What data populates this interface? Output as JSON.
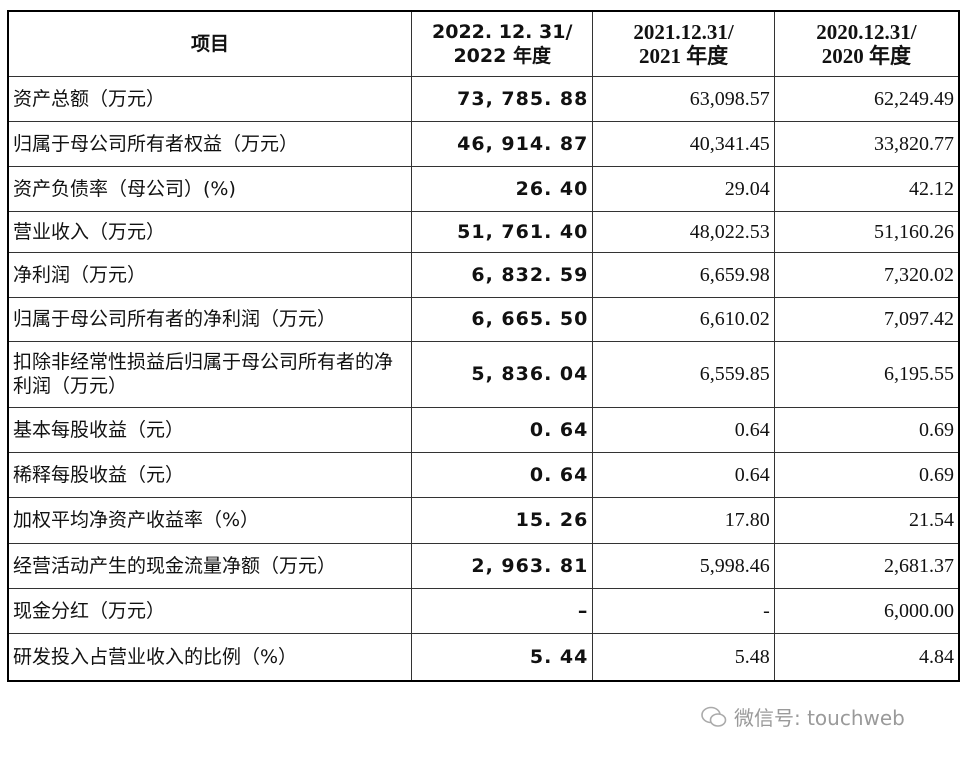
{
  "table": {
    "header": [
      [
        "项目"
      ],
      [
        "2022. 12. 31/",
        "2022 年度"
      ],
      [
        "2021.12.31/",
        "2021 年度"
      ],
      [
        "2020.12.31/",
        "2020 年度"
      ]
    ],
    "rows": [
      [
        "资产总额（万元）",
        "73, 785. 88",
        "63,098.57",
        "62,249.49"
      ],
      [
        "归属于母公司所有者权益（万元）",
        "46, 914. 87",
        "40,341.45",
        "33,820.77"
      ],
      [
        "资产负债率（母公司）(%)",
        "26. 40",
        "29.04",
        "42.12"
      ],
      [
        "营业收入（万元）",
        "51, 761. 40",
        "48,022.53",
        "51,160.26"
      ],
      [
        "净利润（万元）",
        "6, 832. 59",
        "6,659.98",
        "7,320.02"
      ],
      [
        "归属于母公司所有者的净利润（万元）",
        "6, 665. 50",
        "6,610.02",
        "7,097.42"
      ],
      [
        "扣除非经常性损益后归属于母公司所有者的净利润（万元）",
        "5, 836. 04",
        "6,559.85",
        "6,195.55"
      ],
      [
        "基本每股收益（元）",
        "0. 64",
        "0.64",
        "0.69"
      ],
      [
        "稀释每股收益（元）",
        "0. 64",
        "0.64",
        "0.69"
      ],
      [
        "加权平均净资产收益率（%）",
        "15. 26",
        "17.80",
        "21.54"
      ],
      [
        "经营活动产生的现金流量净额（万元）",
        "2, 963. 81",
        "5,998.46",
        "2,681.37"
      ],
      [
        "现金分红（万元）",
        "–",
        "-",
        "6,000.00"
      ],
      [
        "研发投入占营业收入的比例（%）",
        "5. 44",
        "5.48",
        "4.84"
      ]
    ]
  },
  "watermark": "微信号: touchweb"
}
